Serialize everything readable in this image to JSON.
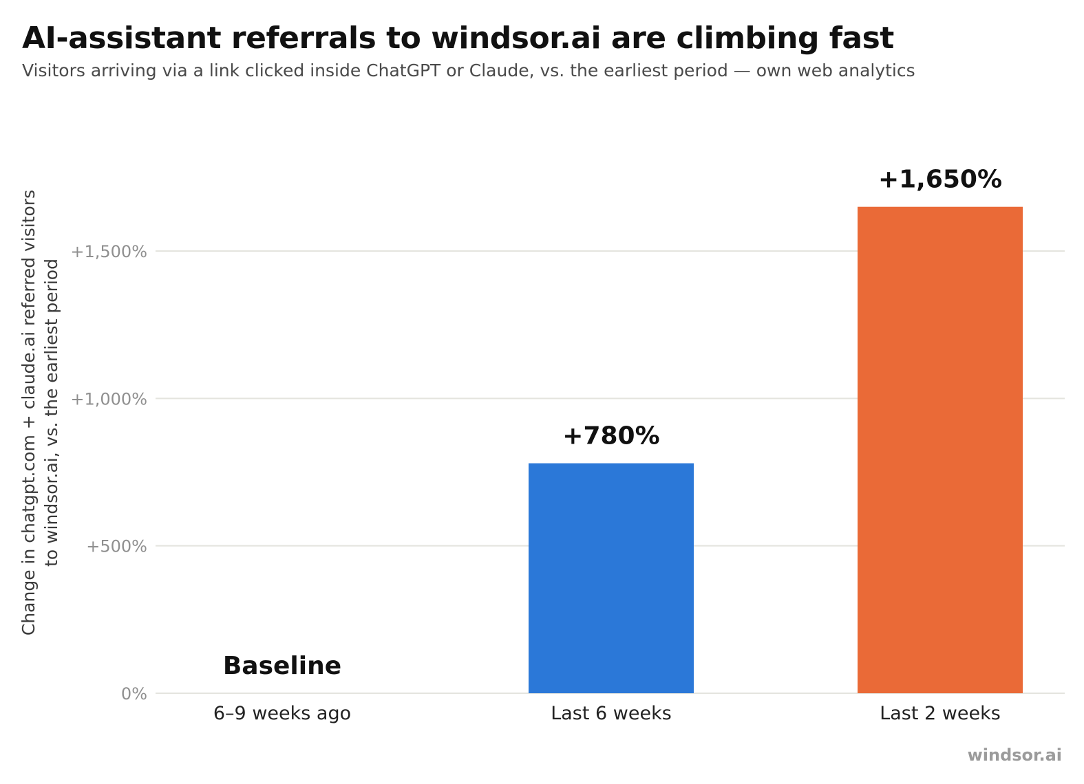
{
  "header": {
    "title": "AI-assistant referrals to windsor.ai are climbing fast",
    "subtitle": "Visitors arriving via a link clicked inside ChatGPT or Claude, vs. the earliest period — own web analytics"
  },
  "footer": {
    "brand": "windsor.ai"
  },
  "chart_data": {
    "type": "bar",
    "title": "AI-assistant referrals to windsor.ai are climbing fast",
    "subtitle": "Visitors arriving via a link clicked inside ChatGPT or Claude, vs. the earliest period — own web analytics",
    "xlabel": "",
    "ylabel_lines": [
      "Change in chatgpt.com + claude.ai referred visitors",
      "to windsor.ai, vs. the earliest period"
    ],
    "categories": [
      "6–9 weeks ago",
      "Last 6 weeks",
      "Last 2 weeks"
    ],
    "values": [
      0,
      780,
      1650
    ],
    "data_labels": [
      "Baseline",
      "+780%",
      "+1,650%"
    ],
    "bar_colors": [
      "#ffffff",
      "#2b78d8",
      "#ea6a37"
    ],
    "y_ticks": [
      0,
      500,
      1000,
      1500
    ],
    "y_tick_labels": [
      "0%",
      "+500%",
      "+1,000%",
      "+1,500%"
    ],
    "ylim": [
      0,
      1650
    ],
    "grid": true,
    "legend": "none"
  }
}
